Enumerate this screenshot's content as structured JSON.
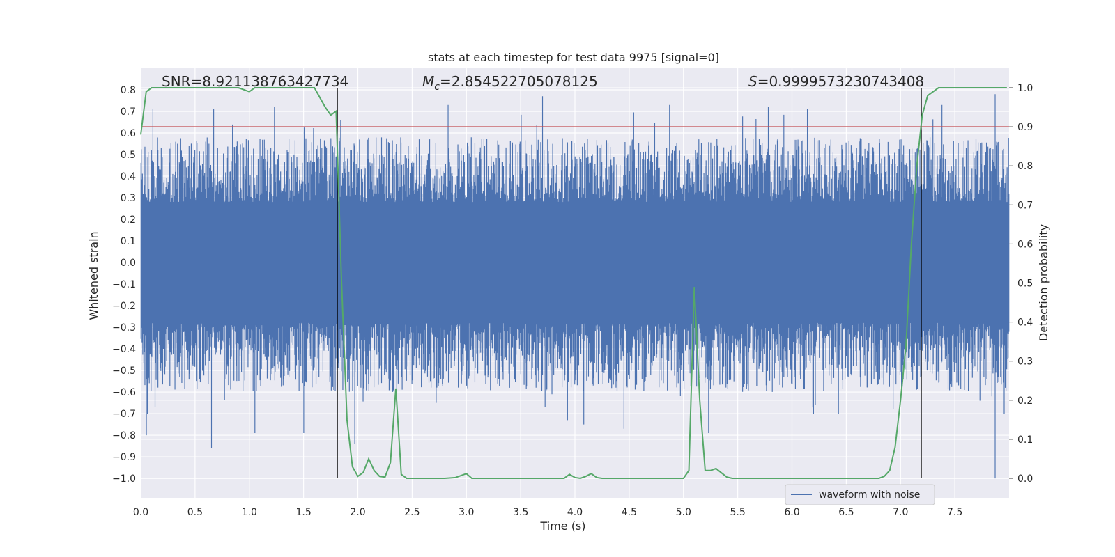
{
  "chart_data": {
    "type": "line",
    "title": "stats at each timestep for test data 9975 [signal=0]",
    "xlabel": "Time (s)",
    "ylabel": "Whitened strain",
    "y2label": "Detection probability",
    "xlim": [
      0,
      8
    ],
    "ylim": [
      -1.09,
      0.9
    ],
    "y2lim": [
      -0.05,
      1.05
    ],
    "xticks": [
      "0.0",
      "0.5",
      "1.0",
      "1.5",
      "2.0",
      "2.5",
      "3.0",
      "3.5",
      "4.0",
      "4.5",
      "5.0",
      "5.5",
      "6.0",
      "6.5",
      "7.0",
      "7.5"
    ],
    "yticks": [
      "0.8",
      "0.7",
      "0.6",
      "0.5",
      "0.4",
      "0.3",
      "0.2",
      "0.1",
      "0.0",
      "−0.1",
      "−0.2",
      "−0.3",
      "−0.4",
      "−0.5",
      "−0.6",
      "−0.7",
      "−0.8",
      "−0.9",
      "−1.0"
    ],
    "y2ticks": [
      "1.0",
      "0.9",
      "0.8",
      "0.7",
      "0.6",
      "0.5",
      "0.4",
      "0.3",
      "0.2",
      "0.1",
      "0.0"
    ],
    "annotations": {
      "snr": "SNR=8.921138763427734",
      "mc_symbol": "M",
      "mc_sub": "c",
      "mc_value": "=2.854522705078125",
      "s_symbol": "S",
      "s_value": "=0.9999573230743408"
    },
    "threshold": 0.9,
    "vlines": [
      1.81,
      7.19
    ],
    "legend": {
      "label": "waveform with noise",
      "placement": "lower-right"
    },
    "series": [
      {
        "name": "waveform with noise",
        "axis": "left",
        "style": "noise",
        "samples": 2400,
        "core": 0.28,
        "max": 0.79,
        "min": -1.0,
        "spikes_down": [
          [
            0.05,
            -0.8
          ],
          [
            0.13,
            -0.67
          ],
          [
            0.65,
            -0.86
          ],
          [
            1.05,
            -0.79
          ],
          [
            1.5,
            -0.79
          ],
          [
            1.86,
            -0.59
          ],
          [
            1.97,
            -0.84
          ],
          [
            2.72,
            -0.65
          ],
          [
            3.93,
            -0.73
          ],
          [
            4.08,
            -0.75
          ],
          [
            4.45,
            -0.77
          ],
          [
            5.23,
            -0.79
          ],
          [
            6.93,
            -0.68
          ],
          [
            7.73,
            -0.64
          ],
          [
            7.84,
            -0.62
          ],
          [
            7.87,
            -1.0
          ]
        ],
        "spikes_up": [
          [
            0.11,
            0.71
          ],
          [
            0.67,
            0.71
          ],
          [
            1.23,
            0.72
          ],
          [
            1.84,
            0.66
          ],
          [
            2.83,
            0.73
          ],
          [
            3.7,
            0.77
          ],
          [
            4.87,
            0.73
          ],
          [
            6.14,
            0.71
          ],
          [
            7.38,
            0.73
          ],
          [
            7.87,
            0.78
          ]
        ]
      },
      {
        "name": "detection probability",
        "axis": "right",
        "style": "line",
        "color": "#55a868",
        "x": [
          0.0,
          0.05,
          0.1,
          0.2,
          0.3,
          0.4,
          0.5,
          0.6,
          0.7,
          0.8,
          0.9,
          1.0,
          1.05,
          1.1,
          1.2,
          1.3,
          1.4,
          1.5,
          1.6,
          1.7,
          1.75,
          1.8,
          1.85,
          1.9,
          1.95,
          2.0,
          2.05,
          2.1,
          2.15,
          2.2,
          2.25,
          2.3,
          2.35,
          2.4,
          2.45,
          2.5,
          2.55,
          2.6,
          2.7,
          2.8,
          2.9,
          3.0,
          3.05,
          3.1,
          3.2,
          3.3,
          3.4,
          3.5,
          3.6,
          3.7,
          3.8,
          3.9,
          3.95,
          4.0,
          4.05,
          4.1,
          4.15,
          4.2,
          4.25,
          4.3,
          4.4,
          4.5,
          4.6,
          4.7,
          4.8,
          4.9,
          5.0,
          5.05,
          5.1,
          5.15,
          5.2,
          5.25,
          5.3,
          5.4,
          5.45,
          5.5,
          5.6,
          5.7,
          5.8,
          5.9,
          6.0,
          6.1,
          6.2,
          6.3,
          6.4,
          6.5,
          6.6,
          6.7,
          6.8,
          6.85,
          6.9,
          6.95,
          7.0,
          7.05,
          7.1,
          7.15,
          7.2,
          7.25,
          7.3,
          7.35,
          7.4,
          7.5,
          7.6,
          7.7,
          7.8,
          7.9,
          7.98
        ],
        "values": [
          0.88,
          0.99,
          1.0,
          1.0,
          1.0,
          1.0,
          1.0,
          1.0,
          1.0,
          1.0,
          1.0,
          0.99,
          1.0,
          1.0,
          1.0,
          1.0,
          1.0,
          1.0,
          1.0,
          0.95,
          0.93,
          0.94,
          0.5,
          0.15,
          0.03,
          0.005,
          0.015,
          0.05,
          0.02,
          0.005,
          0.003,
          0.04,
          0.23,
          0.01,
          0.0,
          0.0,
          0.0,
          0.0,
          0.0,
          0.0,
          0.002,
          0.012,
          0.0,
          0.0,
          0.0,
          0.0,
          0.0,
          0.0,
          0.0,
          0.0,
          0.0,
          0.0,
          0.01,
          0.002,
          0.0,
          0.005,
          0.012,
          0.002,
          0.0,
          0.0,
          0.0,
          0.0,
          0.0,
          0.0,
          0.0,
          0.0,
          0.0,
          0.02,
          0.49,
          0.2,
          0.02,
          0.02,
          0.025,
          0.003,
          0.0,
          0.0,
          0.0,
          0.0,
          0.0,
          0.0,
          0.0,
          0.0,
          0.0,
          0.0,
          0.0,
          0.0,
          0.0,
          0.0,
          0.0,
          0.005,
          0.02,
          0.08,
          0.2,
          0.34,
          0.6,
          0.8,
          0.93,
          0.98,
          0.99,
          1.0,
          1.0,
          1.0,
          1.0,
          1.0,
          1.0,
          1.0,
          1.0
        ]
      }
    ]
  }
}
